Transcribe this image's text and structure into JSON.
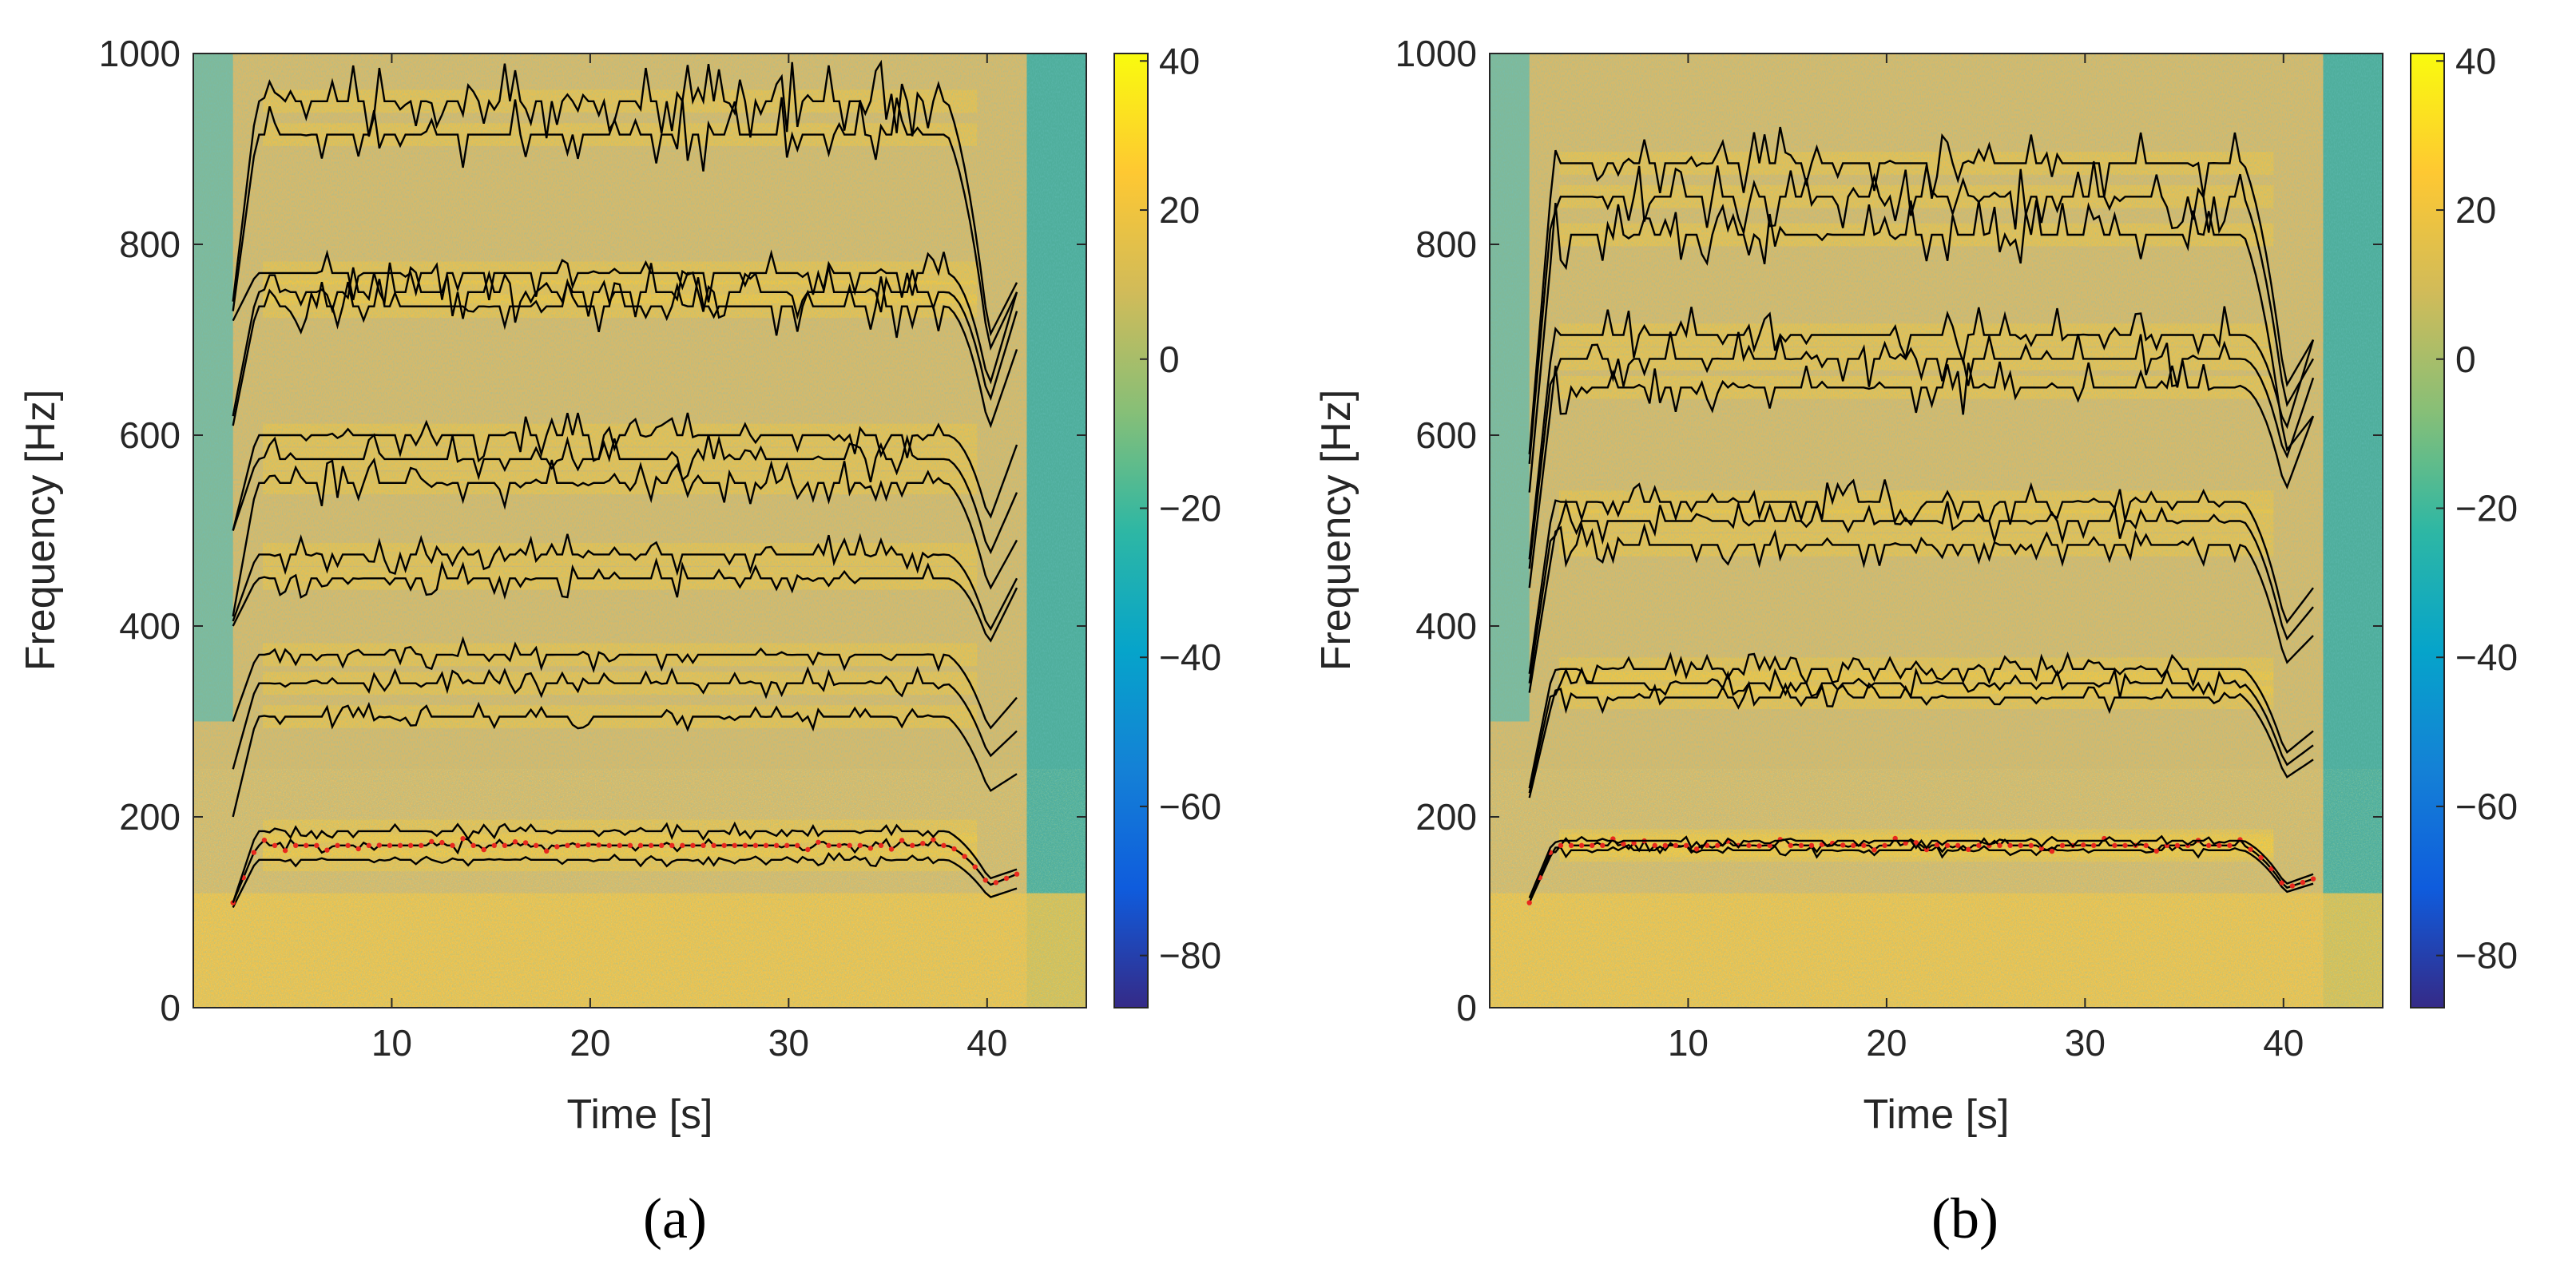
{
  "colors": {
    "background": "#ffffff",
    "harmonic_line": "#000000",
    "f0_marker": "#e8281e",
    "colormap_parula": [
      "#352a87",
      "#0f5cdd",
      "#1481d6",
      "#06a4ca",
      "#2eb7a4",
      "#87bf77",
      "#d1bb59",
      "#fec832",
      "#f9fb0e"
    ]
  },
  "chart_data": [
    {
      "type": "heatmap",
      "panel_label": "(a)",
      "xlabel": "Time [s]",
      "ylabel": "Frequency [Hz]",
      "xlim": [
        0,
        45
      ],
      "ylim": [
        0,
        1000
      ],
      "xticks": [
        10,
        20,
        30,
        40
      ],
      "yticks": [
        0,
        200,
        400,
        600,
        800,
        1000
      ],
      "colorbar": {
        "clim": [
          -87,
          41
        ],
        "ticks": [
          40,
          20,
          0,
          -20,
          -40,
          -60,
          -80
        ],
        "tick_labels": [
          "40",
          "20",
          "0",
          "−20",
          "−40",
          "−60",
          "−80"
        ]
      },
      "grid": false,
      "track_time_range": [
        2,
        41.5
      ],
      "tracks_hz": [
        {
          "steady": 155,
          "start": 105,
          "end": 125
        },
        {
          "steady": 170,
          "start": 110,
          "end": 140,
          "is_f0_marker": true
        },
        {
          "steady": 185,
          "start": 110,
          "end": 145
        },
        {
          "steady": 305,
          "start": 200,
          "end": 245
        },
        {
          "steady": 340,
          "start": 250,
          "end": 290
        },
        {
          "steady": 370,
          "start": 300,
          "end": 325
        },
        {
          "steady": 450,
          "start": 400,
          "end": 440
        },
        {
          "steady": 475,
          "start": 405,
          "end": 450
        },
        {
          "steady": 550,
          "start": 410,
          "end": 490
        },
        {
          "steady": 575,
          "start": 500,
          "end": 540
        },
        {
          "steady": 600,
          "start": 500,
          "end": 590
        },
        {
          "steady": 735,
          "start": 610,
          "end": 690
        },
        {
          "steady": 750,
          "start": 620,
          "end": 730
        },
        {
          "steady": 770,
          "start": 720,
          "end": 750
        },
        {
          "steady": 915,
          "start": 730,
          "end": 750
        },
        {
          "steady": 950,
          "start": 740,
          "end": 760
        }
      ]
    },
    {
      "type": "heatmap",
      "panel_label": "(b)",
      "xlabel": "Time [s]",
      "ylabel": "Frequency [Hz]",
      "xlim": [
        0,
        45
      ],
      "ylim": [
        0,
        1000
      ],
      "xticks": [
        10,
        20,
        30,
        40
      ],
      "yticks": [
        0,
        200,
        400,
        600,
        800,
        1000
      ],
      "colorbar": {
        "clim": [
          -87,
          41
        ],
        "ticks": [
          40,
          20,
          0,
          -20,
          -40,
          -60,
          -80
        ],
        "tick_labels": [
          "40",
          "20",
          "0",
          "−20",
          "−40",
          "−60",
          "−80"
        ]
      },
      "grid": false,
      "track_time_range": [
        2,
        41.5
      ],
      "tracks_hz": [
        {
          "steady": 165,
          "start": 110,
          "end": 130
        },
        {
          "steady": 170,
          "start": 110,
          "end": 135,
          "is_f0_marker": true
        },
        {
          "steady": 175,
          "start": 115,
          "end": 140
        },
        {
          "steady": 325,
          "start": 220,
          "end": 260
        },
        {
          "steady": 340,
          "start": 225,
          "end": 275
        },
        {
          "steady": 355,
          "start": 230,
          "end": 290
        },
        {
          "steady": 485,
          "start": 330,
          "end": 390
        },
        {
          "steady": 510,
          "start": 340,
          "end": 420
        },
        {
          "steady": 530,
          "start": 350,
          "end": 440
        },
        {
          "steady": 650,
          "start": 440,
          "end": 620
        },
        {
          "steady": 680,
          "start": 460,
          "end": 660
        },
        {
          "steady": 705,
          "start": 470,
          "end": 700
        },
        {
          "steady": 810,
          "start": 540,
          "end": 620
        },
        {
          "steady": 850,
          "start": 570,
          "end": 680
        },
        {
          "steady": 885,
          "start": 580,
          "end": 700
        }
      ]
    }
  ]
}
